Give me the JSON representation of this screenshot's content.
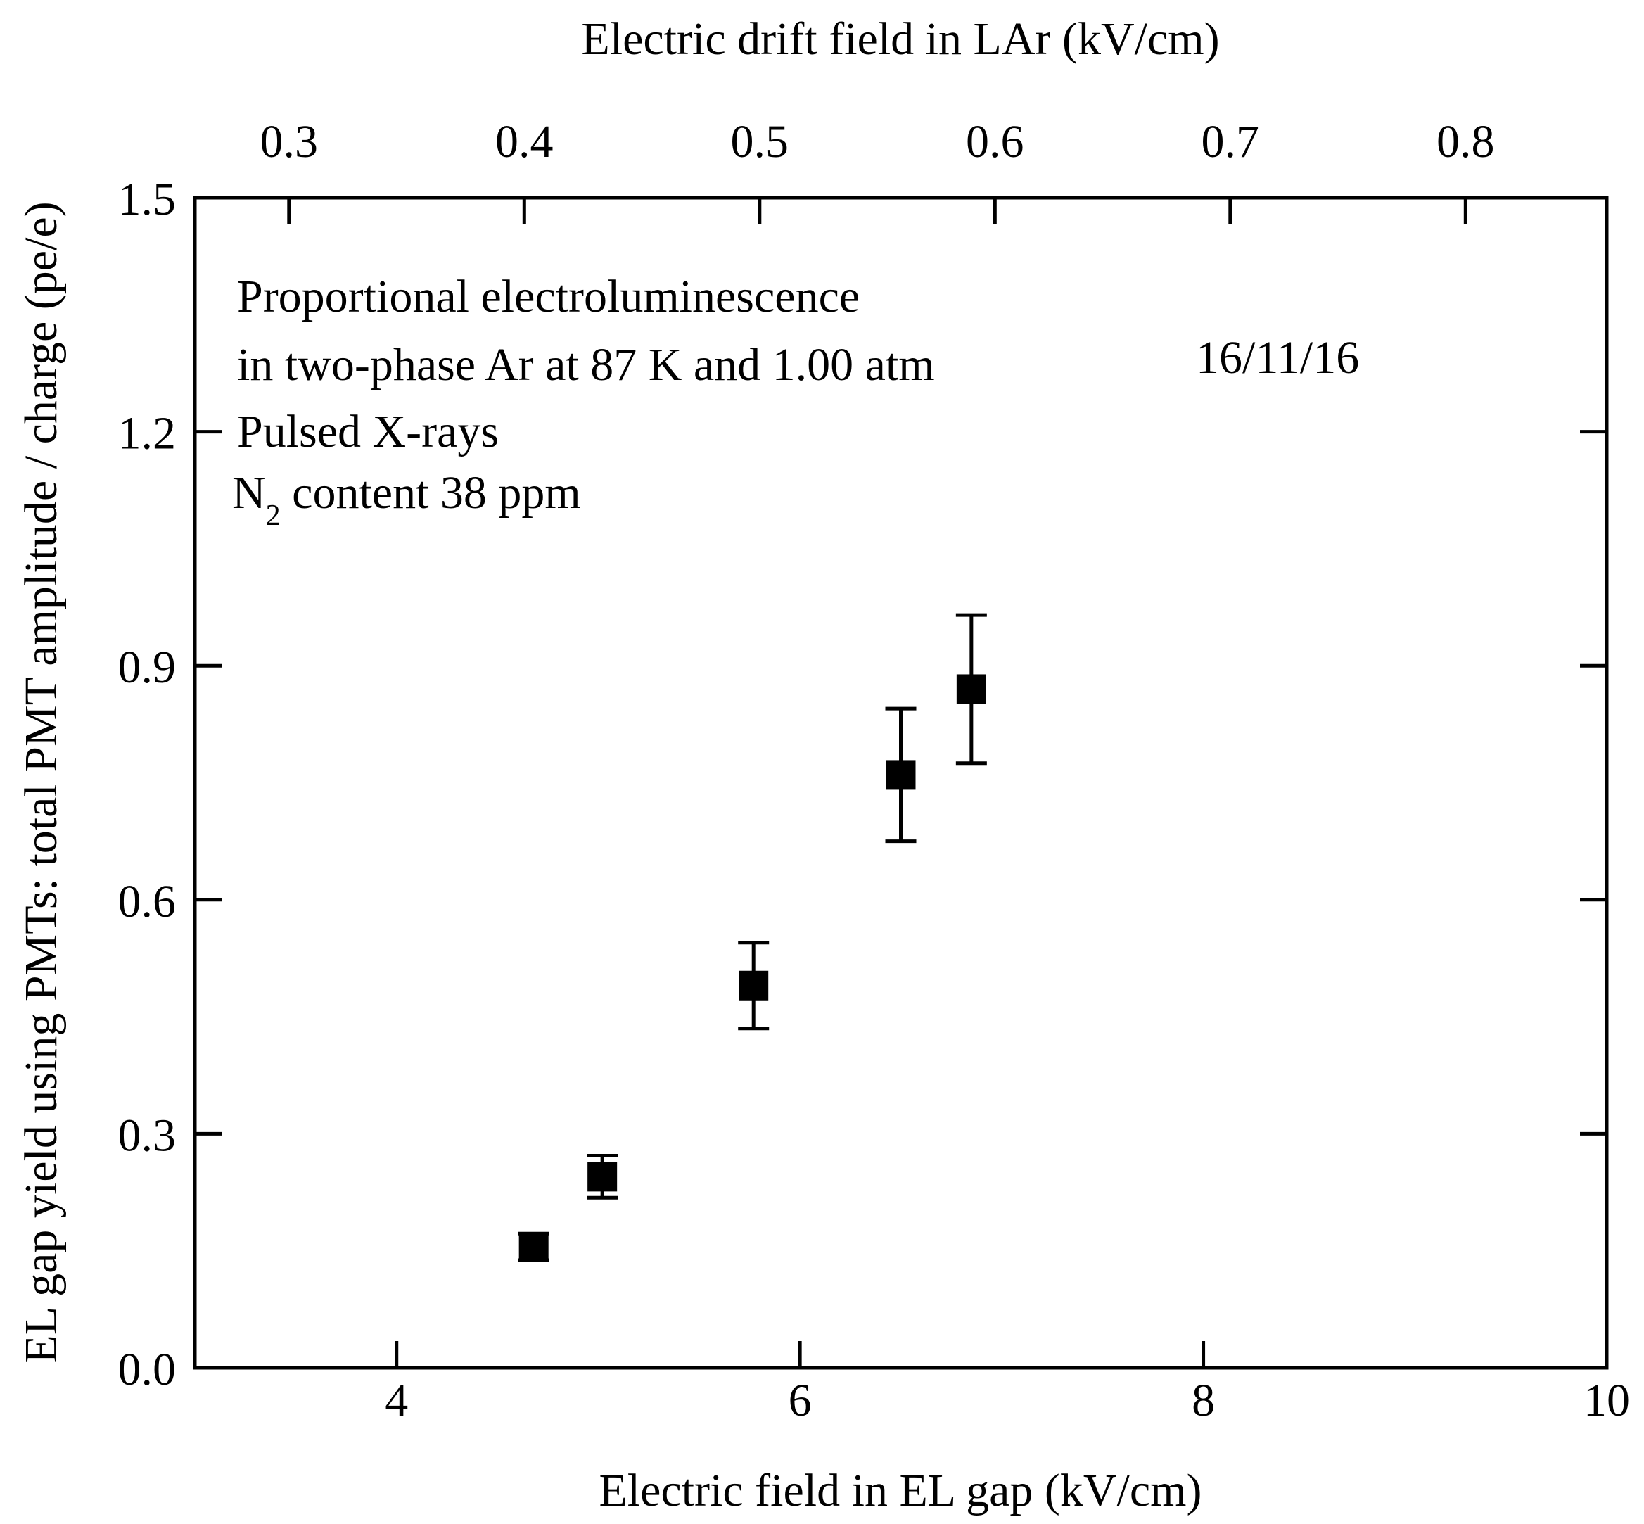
{
  "chart_data": {
    "type": "scatter",
    "title": "",
    "xlabel": "Electric field in EL gap (kV/cm)",
    "ylabel": "EL gap yield using PMTs: total PMT amplitude / charge (pe/e)",
    "x2label": "Electric drift field in LAr (kV/cm)",
    "xlim": [
      3,
      10
    ],
    "ylim": [
      0,
      1.5
    ],
    "x2lim": [
      0.26,
      0.86
    ],
    "xticks": [
      4,
      6,
      8,
      10
    ],
    "xtick_labels": [
      "4",
      "6",
      "8",
      "10"
    ],
    "yticks": [
      0,
      0.3,
      0.6,
      0.9,
      1.2,
      1.5
    ],
    "ytick_labels": [
      "0.0",
      "0.3",
      "0.6",
      "0.9",
      "1.2",
      "1.5"
    ],
    "x2ticks": [
      0.3,
      0.4,
      0.5,
      0.6,
      0.7,
      0.8
    ],
    "x2tick_labels": [
      "0.3",
      "0.4",
      "0.5",
      "0.6",
      "0.7",
      "0.8"
    ],
    "grid": false,
    "legend": "none",
    "marker": "filled-square",
    "color": "#000000",
    "series": [
      {
        "x": [
          4.68,
          5.02,
          5.77,
          6.5,
          6.85
        ],
        "y": [
          0.155,
          0.245,
          0.49,
          0.76,
          0.87
        ],
        "yerr": [
          0.017,
          0.027,
          0.055,
          0.085,
          0.095
        ]
      }
    ],
    "annotations": {
      "line1": "Proportional electroluminescence",
      "line2": "in two-phase Ar at 87 K and 1.00 atm",
      "line3": "Pulsed X-rays",
      "n2_base": "N",
      "n2_sub": "2",
      "n2_rest": " content 38 ppm",
      "date": "16/11/16"
    }
  }
}
